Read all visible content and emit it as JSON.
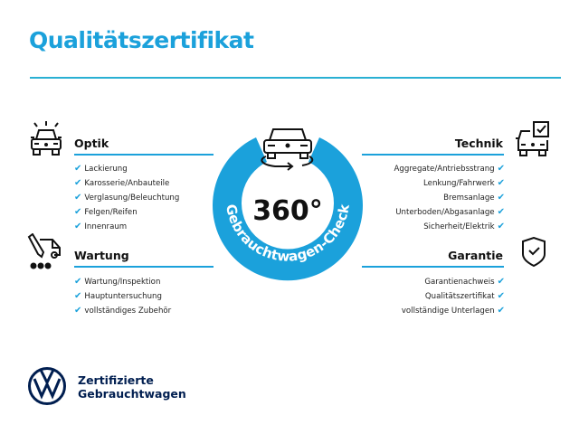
{
  "title": "Qualitätszertifikat",
  "badge": {
    "number": "360°",
    "arc_text": "Gebrauchtwagen-Check",
    "color": "#1ba1db"
  },
  "sections": {
    "optik": {
      "heading": "Optik",
      "icon": "car-lights-icon",
      "items": [
        "Lackierung",
        "Karosserie/Anbauteile",
        "Verglasung/Beleuchtung",
        "Felgen/Reifen",
        "Innenraum"
      ]
    },
    "wartung": {
      "heading": "Wartung",
      "icon": "service-van-icon",
      "items": [
        "Wartung/Inspektion",
        "Hauptuntersuchung",
        "vollständiges Zubehör"
      ]
    },
    "technik": {
      "heading": "Technik",
      "icon": "car-checkbox-icon",
      "items": [
        "Aggregate/Antriebsstrang",
        "Lenkung/Fahrwerk",
        "Bremsanlage",
        "Unterboden/Abgasanlage",
        "Sicherheit/Elektrik"
      ]
    },
    "garantie": {
      "heading": "Garantie",
      "icon": "shield-check-icon",
      "items": [
        "Garantienachweis",
        "Qualitätszertifikat",
        "vollständige Unterlagen"
      ]
    }
  },
  "check_mark": "✔",
  "footer": {
    "line1": "Zertifizierte",
    "line2": "Gebrauchtwagen",
    "brand_color": "#001e50"
  }
}
